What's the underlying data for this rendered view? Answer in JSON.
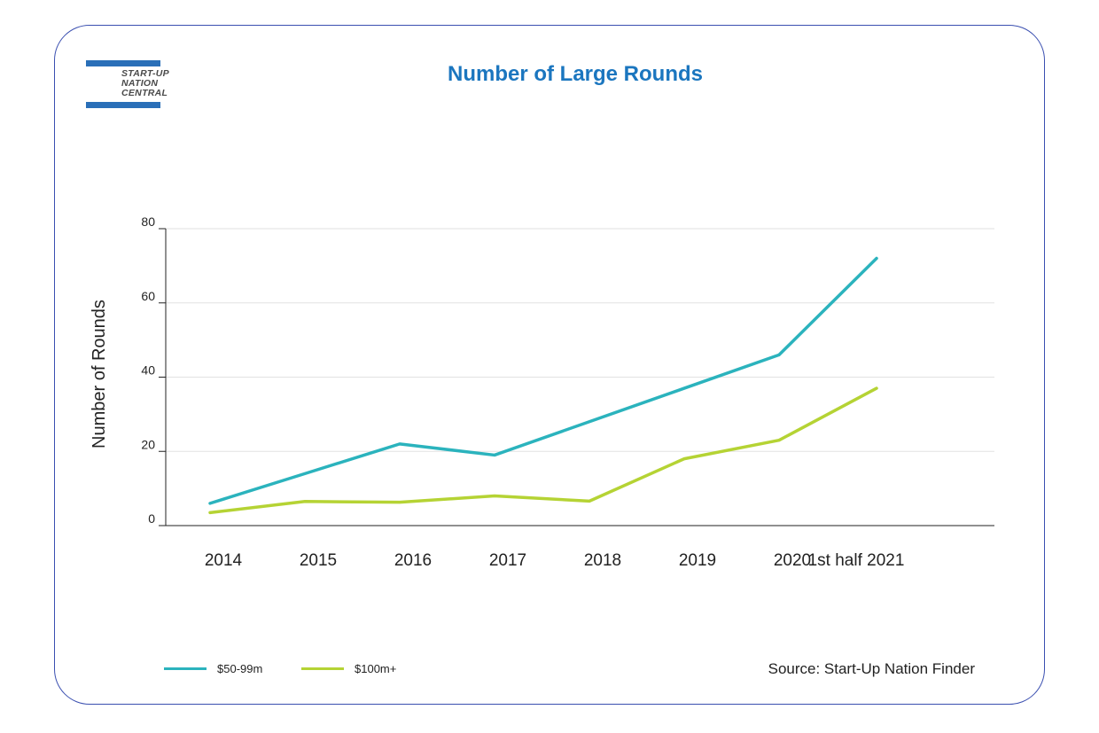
{
  "logo": {
    "line1": "START-UP",
    "line2": "NATION",
    "line3": "CENTRAL",
    "color": "#2a6fb8"
  },
  "source": "Source: Start-Up Nation Finder",
  "chart_data": {
    "type": "line",
    "title": "Number of Large Rounds",
    "ylabel": "Number of Rounds",
    "xlabel": "",
    "categories": [
      "2014",
      "2015",
      "2016",
      "2017",
      "2018",
      "2019",
      "2020",
      "1st half 2021"
    ],
    "ylim": [
      0,
      80
    ],
    "yticks": [
      0,
      20,
      40,
      60,
      80
    ],
    "grid": true,
    "legend_position": "bottom-left",
    "series": [
      {
        "name": "$50-99m",
        "color": "#2bb3bd",
        "values": [
          6,
          14,
          22,
          19,
          28,
          37,
          46,
          72
        ]
      },
      {
        "name": "$100m+",
        "color": "#b5d334",
        "values": [
          3.5,
          6.5,
          6.3,
          8,
          6.6,
          18,
          23,
          37
        ]
      }
    ]
  }
}
